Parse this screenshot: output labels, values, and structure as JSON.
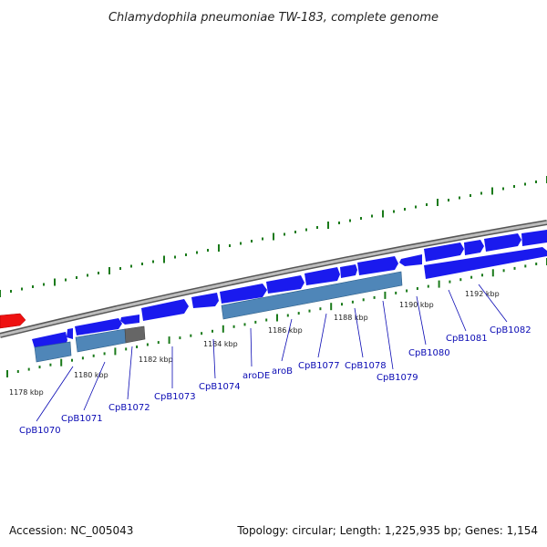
{
  "header": {
    "title": "Chlamydophila pneumoniae TW-183, complete genome"
  },
  "footer": {
    "accession": "Accession: NC_005043",
    "summary": "Topology: circular; Length: 1,225,935 bp; Genes: 1,154"
  },
  "colors": {
    "forward_gene": "#1a1aee",
    "reverse_gene": "#1a1aee",
    "highlight_gene": "#ee1111",
    "feature_box": "#4f86b8",
    "feature_box_gray": "#666666",
    "backbone": "#8a8a8a",
    "tick": "#1a7a1a",
    "label": "#0a0ab4"
  },
  "ruler": {
    "unit": "kbp",
    "ticks": [
      {
        "label": "1178 kbp"
      },
      {
        "label": "1180 kbp"
      },
      {
        "label": "1182 kbp"
      },
      {
        "label": "1184 kbp"
      },
      {
        "label": "1186 kbp"
      },
      {
        "label": "1188 kbp"
      },
      {
        "label": "1190 kbp"
      },
      {
        "label": "1192 kbp"
      }
    ]
  },
  "genes": [
    {
      "name": "CpB1070"
    },
    {
      "name": "CpB1071"
    },
    {
      "name": "CpB1072"
    },
    {
      "name": "CpB1073"
    },
    {
      "name": "CpB1074"
    },
    {
      "name": "aroDE"
    },
    {
      "name": "aroB"
    },
    {
      "name": "CpB1077"
    },
    {
      "name": "CpB1078"
    },
    {
      "name": "CpB1079"
    },
    {
      "name": "CpB1080"
    },
    {
      "name": "CpB1081"
    },
    {
      "name": "CpB1082"
    }
  ]
}
